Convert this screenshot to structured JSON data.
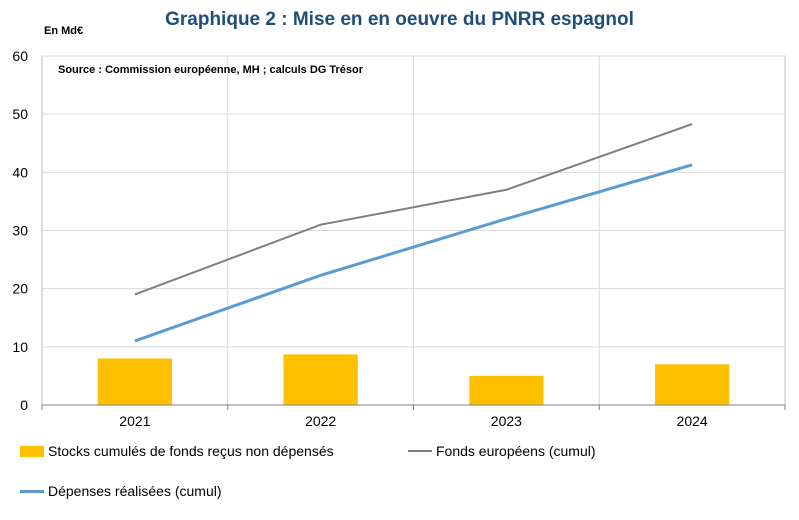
{
  "title": "Graphique 2 : Mise en en oeuvre du PNRR espagnol",
  "unit_label": "En Md€",
  "source": "Source : Commission européenne, MH ; calculs DG Trésor",
  "chart_data": {
    "type": "bar",
    "categories": [
      "2021",
      "2022",
      "2023",
      "2024"
    ],
    "ylim": [
      0,
      60
    ],
    "yticks": [
      0,
      10,
      20,
      30,
      40,
      50,
      60
    ],
    "grid": true,
    "legend_position": "bottom",
    "series": [
      {
        "name": "Stocks cumulés de fonds reçus non dépensés",
        "kind": "bar",
        "color": "#ffc000",
        "values": [
          8,
          8.7,
          5,
          7
        ]
      },
      {
        "name": "Fonds européens (cumul)",
        "kind": "line",
        "color": "#7f7f7f",
        "values": [
          19,
          31,
          37,
          48.3
        ]
      },
      {
        "name": "Dépenses réalisées (cumul)",
        "kind": "line",
        "color": "#5b9bd5",
        "values": [
          11,
          22.3,
          32,
          41.3
        ]
      }
    ]
  }
}
